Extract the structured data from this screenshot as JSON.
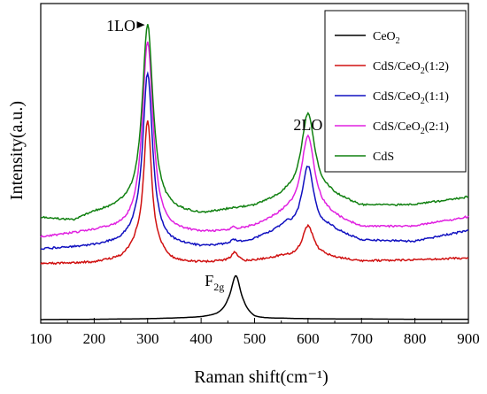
{
  "chart_data": {
    "type": "line",
    "xlabel": "Raman shift(cm⁻¹)",
    "ylabel": "Intensity(a.u.)",
    "xlim": [
      100,
      900
    ],
    "ylim": [
      0,
      100
    ],
    "x_ticks": [
      "100",
      "200",
      "300",
      "400",
      "500",
      "600",
      "700",
      "800",
      "900"
    ],
    "y_ticks_labeled": false,
    "grid": false,
    "legend_position": "top-right",
    "annotations": [
      {
        "text": "1LO",
        "x": 250,
        "y": 96.5,
        "arrow_to": [
          298,
          96.5
        ]
      },
      {
        "text": "2LO",
        "x": 600,
        "y": 64
      },
      {
        "text": "F",
        "sub": "2g",
        "x": 425,
        "y": 13
      }
    ],
    "series": [
      {
        "name": "CeO",
        "name_sub": "2",
        "color": "#000000",
        "peaks": [
          {
            "x": 465,
            "h": 14.3,
            "w": 11
          }
        ],
        "points": [
          [
            100,
            0.3
          ],
          [
            200,
            0.4
          ],
          [
            300,
            0.6
          ],
          [
            400,
            1.3
          ],
          [
            430,
            2.5
          ],
          [
            450,
            7
          ],
          [
            465,
            14.6
          ],
          [
            480,
            6.5
          ],
          [
            500,
            1.6
          ],
          [
            550,
            0.8
          ],
          [
            600,
            0.6
          ],
          [
            700,
            0.5
          ],
          [
            800,
            0.4
          ],
          [
            900,
            0.4
          ]
        ]
      },
      {
        "name": "CdS/CeO",
        "name_sub": "2",
        "name_tail": "(1:2)",
        "color": "#d01010",
        "peaks": [
          {
            "x": 300,
            "h": 46.5,
            "w": 9
          },
          {
            "x": 463,
            "h": 3,
            "w": 8
          },
          {
            "x": 600,
            "h": 10.8,
            "w": 13
          }
        ],
        "points": [
          [
            100,
            18.6
          ],
          [
            200,
            19.3
          ],
          [
            250,
            21.5
          ],
          [
            280,
            31
          ],
          [
            300,
            65.5
          ],
          [
            320,
            29
          ],
          [
            350,
            20.5
          ],
          [
            400,
            19.3
          ],
          [
            440,
            19.8
          ],
          [
            463,
            22.3
          ],
          [
            480,
            19.8
          ],
          [
            550,
            21.5
          ],
          [
            600,
            31
          ],
          [
            630,
            22.5
          ],
          [
            700,
            19.6
          ],
          [
            800,
            19.9
          ],
          [
            900,
            20.5
          ]
        ]
      },
      {
        "name": "CdS/CeO",
        "name_sub": "2",
        "name_tail": "(1:1)",
        "color": "#1010c0",
        "peaks": [
          {
            "x": 300,
            "h": 55.5,
            "w": 11
          },
          {
            "x": 460,
            "h": 1.5,
            "w": 6
          },
          {
            "x": 600,
            "h": 25,
            "w": 14
          }
        ],
        "points": [
          [
            100,
            23.5
          ],
          [
            200,
            25
          ],
          [
            250,
            28
          ],
          [
            280,
            40
          ],
          [
            300,
            81
          ],
          [
            320,
            38
          ],
          [
            350,
            27
          ],
          [
            400,
            24.7
          ],
          [
            460,
            26.7
          ],
          [
            500,
            27
          ],
          [
            560,
            33
          ],
          [
            600,
            50.5
          ],
          [
            640,
            32
          ],
          [
            700,
            26.5
          ],
          [
            800,
            26
          ],
          [
            900,
            29.5
          ]
        ]
      },
      {
        "name": "CdS/CeO",
        "name_sub": "2",
        "name_tail": "(2:1)",
        "color": "#e020e0",
        "peaks": [
          {
            "x": 300,
            "h": 61.5,
            "w": 12
          },
          {
            "x": 460,
            "h": 1,
            "w": 6
          },
          {
            "x": 600,
            "h": 26,
            "w": 15
          }
        ],
        "points": [
          [
            100,
            27.5
          ],
          [
            200,
            30
          ],
          [
            250,
            33
          ],
          [
            280,
            46
          ],
          [
            300,
            91.5
          ],
          [
            320,
            45
          ],
          [
            350,
            32
          ],
          [
            400,
            29.5
          ],
          [
            460,
            30.6
          ],
          [
            500,
            31.5
          ],
          [
            560,
            38
          ],
          [
            600,
            60.5
          ],
          [
            640,
            37
          ],
          [
            700,
            31
          ],
          [
            800,
            31
          ],
          [
            900,
            34
          ]
        ]
      },
      {
        "name": "CdS",
        "name_sub": "",
        "name_tail": "",
        "color": "#108010",
        "peaks": [
          {
            "x": 300,
            "h": 60.5,
            "w": 12
          },
          {
            "x": 600,
            "h": 27,
            "w": 15
          }
        ],
        "points": [
          [
            100,
            34
          ],
          [
            160,
            33
          ],
          [
            200,
            36
          ],
          [
            250,
            40
          ],
          [
            280,
            53
          ],
          [
            300,
            97
          ],
          [
            320,
            52
          ],
          [
            350,
            38.5
          ],
          [
            400,
            35.5
          ],
          [
            460,
            37
          ],
          [
            500,
            38
          ],
          [
            560,
            44
          ],
          [
            600,
            68
          ],
          [
            640,
            44
          ],
          [
            700,
            38
          ],
          [
            800,
            38
          ],
          [
            900,
            40.5
          ]
        ]
      }
    ]
  }
}
